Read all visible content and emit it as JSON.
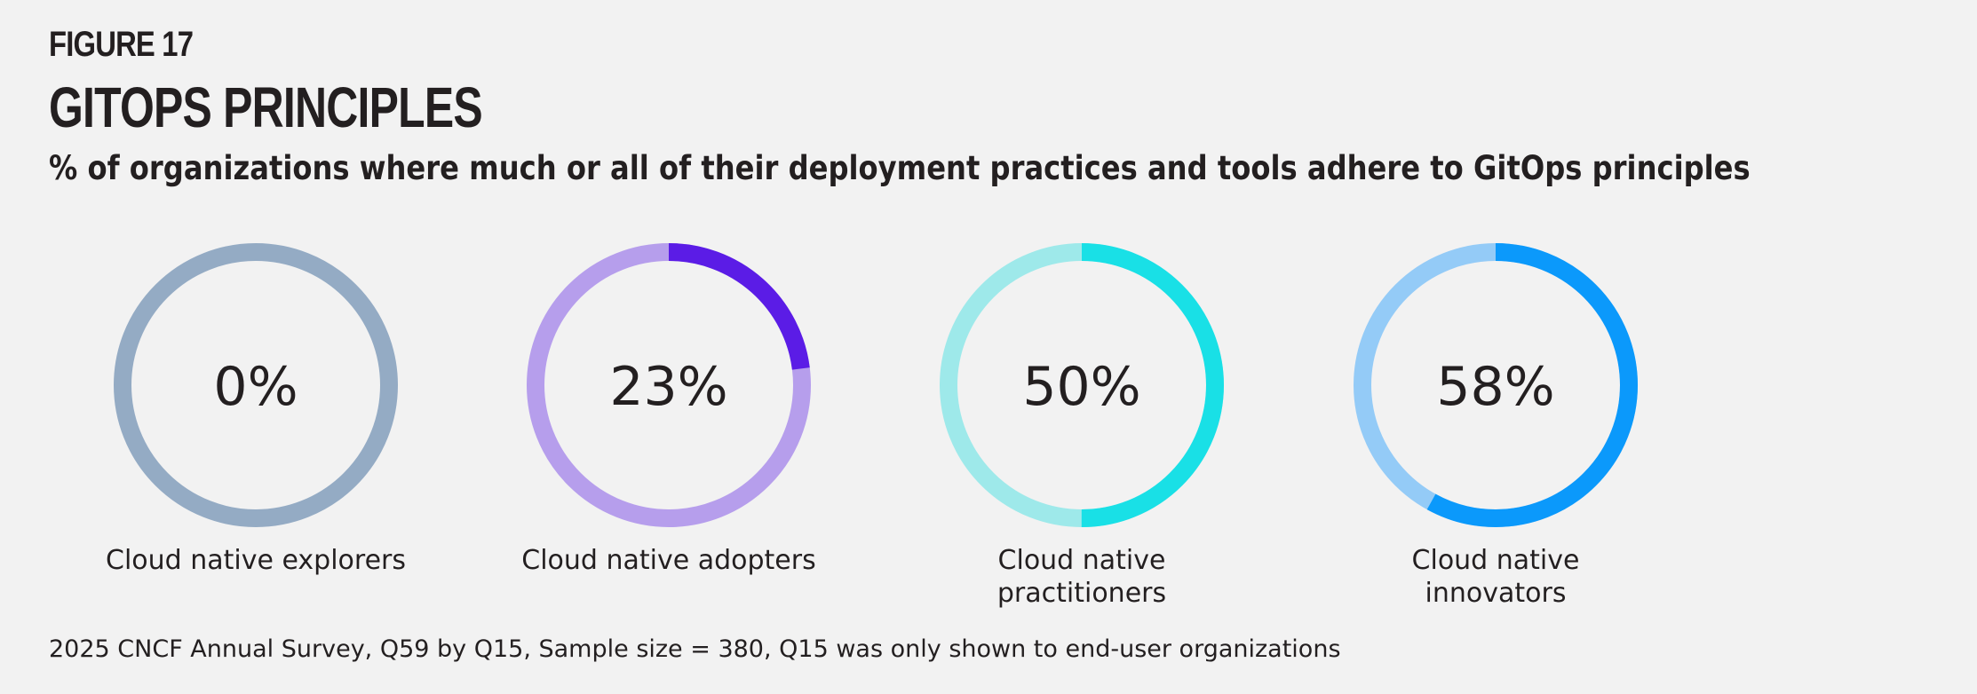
{
  "figure_label": "FIGURE 17",
  "title": "GITOPS PRINCIPLES",
  "subtitle": "% of organizations where much or all of their deployment practices and tools adhere to GitOps principles",
  "chart_data": {
    "type": "donut",
    "title": "GITOPS PRINCIPLES",
    "unit": "%",
    "categories": [
      "Cloud native explorers",
      "Cloud native adopters",
      "Cloud native practitioners",
      "Cloud native innovators"
    ],
    "values": [
      0,
      23,
      50,
      58
    ],
    "items": [
      {
        "label_lines": [
          "Cloud native explorers"
        ],
        "value": 0,
        "display": "0%",
        "color": "#5b7ea3",
        "track_color": "#94abc4"
      },
      {
        "label_lines": [
          "Cloud native adopters"
        ],
        "value": 23,
        "display": "23%",
        "color": "#5b1ce6",
        "track_color": "#b69eec"
      },
      {
        "label_lines": [
          "Cloud native",
          "practitioners"
        ],
        "value": 50,
        "display": "50%",
        "color": "#19e0e6",
        "track_color": "#9ee9ea"
      },
      {
        "label_lines": [
          "Cloud native",
          "innovators"
        ],
        "value": 58,
        "display": "58%",
        "color": "#0b99fb",
        "track_color": "#94cbf7"
      }
    ]
  },
  "footer": "2025 CNCF Annual Survey, Q59 by Q15, Sample size = 380, Q15 was only shown to end-user organizations"
}
